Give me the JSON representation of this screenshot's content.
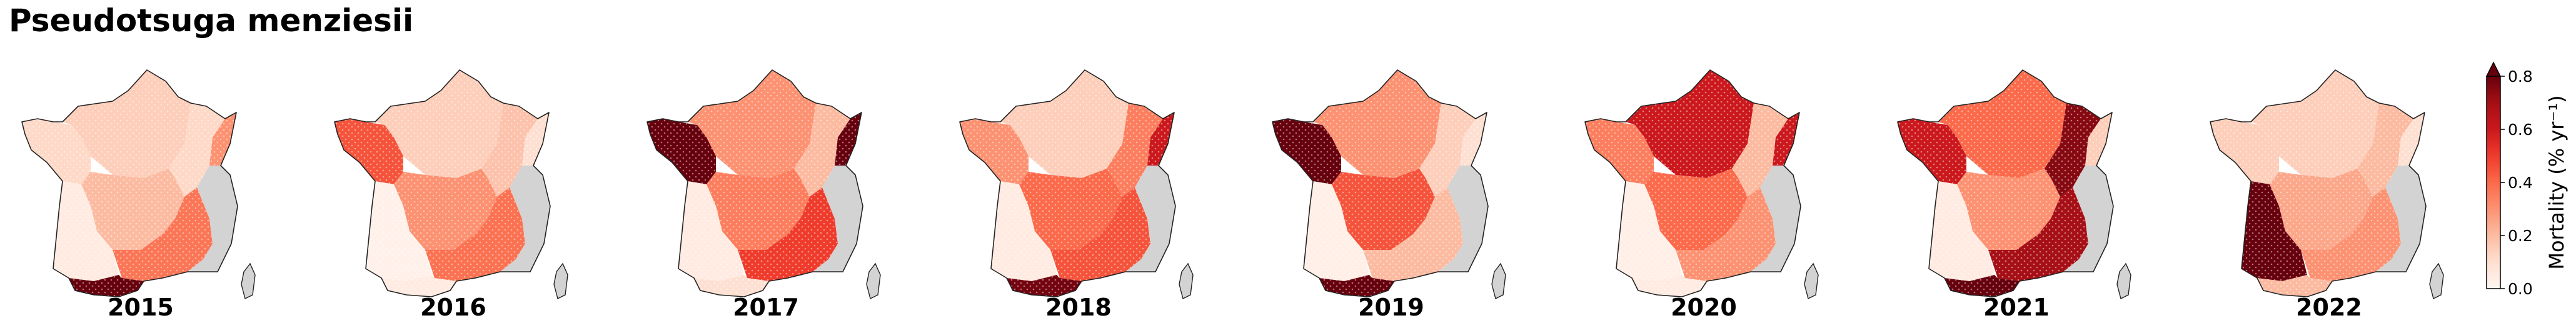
{
  "title": "Pseudotsuga menziesii",
  "chart_data": {
    "type": "choropleth",
    "title": "Pseudotsuga menziesii",
    "years": [
      "2015",
      "2016",
      "2017",
      "2018",
      "2019",
      "2020",
      "2021",
      "2022"
    ],
    "regions": [
      "west",
      "north",
      "northeast",
      "alsace",
      "central",
      "southwest",
      "southeast",
      "pyrenees",
      "alps"
    ],
    "region_note": "southeast/alps area shown in gray (no data)",
    "no_data_color": "#d3d3d3",
    "values": {
      "2015": {
        "west": 0.12,
        "north": 0.15,
        "northeast": 0.12,
        "alsace": 0.3,
        "central": 0.2,
        "southwest": 0.05,
        "southeast": 0.37,
        "pyrenees": 0.8
      },
      "2016": {
        "west": 0.45,
        "north": 0.15,
        "northeast": 0.18,
        "alsace": 0.1,
        "central": 0.3,
        "southwest": 0.02,
        "southeast": 0.38,
        "pyrenees": 0.05
      },
      "2017": {
        "west": 0.82,
        "north": 0.3,
        "northeast": 0.2,
        "alsace": 0.8,
        "central": 0.35,
        "southwest": 0.05,
        "southeast": 0.5,
        "pyrenees": 0.1
      },
      "2018": {
        "west": 0.3,
        "north": 0.15,
        "northeast": 0.35,
        "alsace": 0.6,
        "central": 0.4,
        "southwest": 0.05,
        "southeast": 0.45,
        "pyrenees": 0.78
      },
      "2019": {
        "west": 0.82,
        "north": 0.3,
        "northeast": 0.15,
        "alsace": 0.1,
        "central": 0.45,
        "southwest": 0.03,
        "southeast": 0.2,
        "pyrenees": 0.8
      },
      "2020": {
        "west": 0.35,
        "north": 0.6,
        "northeast": 0.2,
        "alsace": 0.6,
        "central": 0.4,
        "southwest": 0.03,
        "southeast": 0.3,
        "pyrenees": 0.05
      },
      "2021": {
        "west": 0.6,
        "north": 0.4,
        "northeast": 0.75,
        "alsace": 0.15,
        "central": 0.3,
        "southwest": 0.05,
        "southeast": 0.7,
        "pyrenees": 0.8
      },
      "2022": {
        "west": 0.15,
        "north": 0.15,
        "northeast": 0.2,
        "alsace": 0.1,
        "central": 0.25,
        "southwest": 0.82,
        "southeast": 0.3,
        "pyrenees": 0.2
      }
    },
    "colorbar": {
      "label": "Mortality (% yr⁻¹)",
      "cmap": "Reds",
      "range": [
        0.0,
        0.8
      ],
      "extend": "max",
      "ticks": [
        "0.0",
        "0.2",
        "0.4",
        "0.6",
        "0.8"
      ]
    }
  }
}
